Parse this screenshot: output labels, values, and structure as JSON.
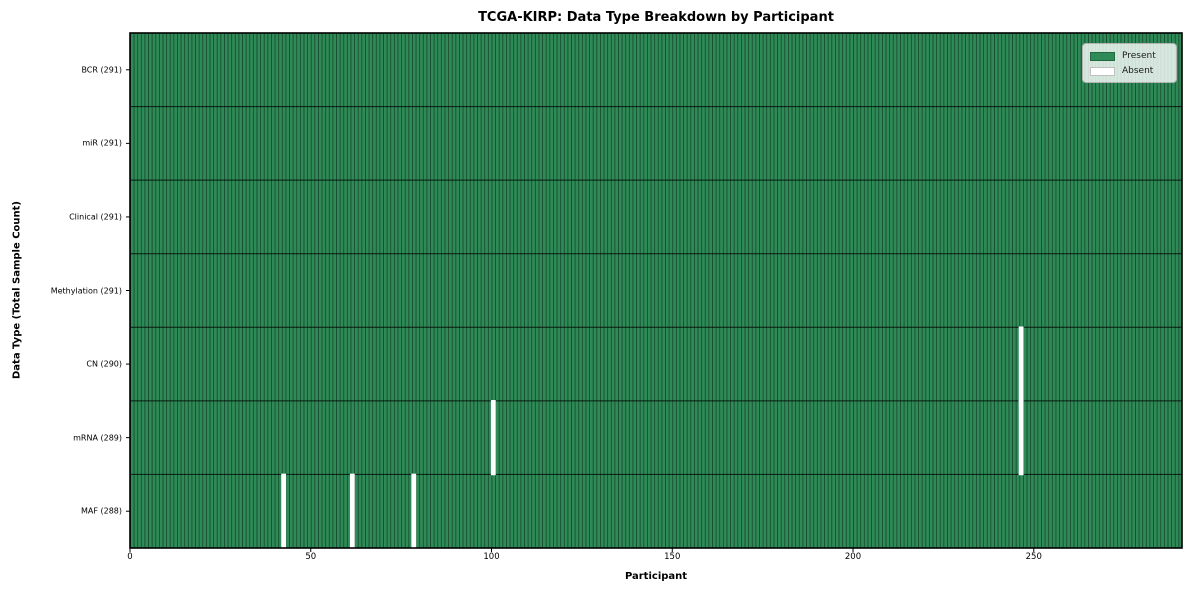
{
  "chart_data": {
    "type": "heatmap",
    "title": "TCGA-KIRP: Data Type Breakdown by Participant",
    "xlabel": "Participant",
    "ylabel": "Data Type (Total Sample Count)",
    "n_participants": 291,
    "x_ticks": [
      0,
      50,
      100,
      150,
      200,
      250
    ],
    "x_range": [
      0,
      291
    ],
    "grid": false,
    "rows": [
      {
        "label": "BCR (291)",
        "data_type": "BCR",
        "present_count": 291,
        "absent_participants": []
      },
      {
        "label": "miR (291)",
        "data_type": "miR",
        "present_count": 291,
        "absent_participants": []
      },
      {
        "label": "Clinical (291)",
        "data_type": "Clinical",
        "present_count": 291,
        "absent_participants": []
      },
      {
        "label": "Methylation (291)",
        "data_type": "Methylation",
        "present_count": 291,
        "absent_participants": []
      },
      {
        "label": "CN (290)",
        "data_type": "CN",
        "present_count": 290,
        "absent_participants": [
          246
        ]
      },
      {
        "label": "mRNA (289)",
        "data_type": "mRNA",
        "present_count": 289,
        "absent_participants": [
          100,
          246
        ]
      },
      {
        "label": "MAF (288)",
        "data_type": "MAF",
        "present_count": 288,
        "absent_participants": [
          42,
          61,
          78
        ]
      }
    ],
    "legend": {
      "position": "upper right",
      "entries": [
        {
          "label": "Present",
          "color": "#2e8b57"
        },
        {
          "label": "Absent",
          "color": "#ffffff"
        }
      ]
    },
    "colors": {
      "present": "#2e8b57",
      "absent": "#ffffff",
      "cell_border": "rgba(0,0,0,0.45)",
      "row_separator": "rgba(0,0,0,0.8)",
      "frame": "#000000"
    }
  }
}
